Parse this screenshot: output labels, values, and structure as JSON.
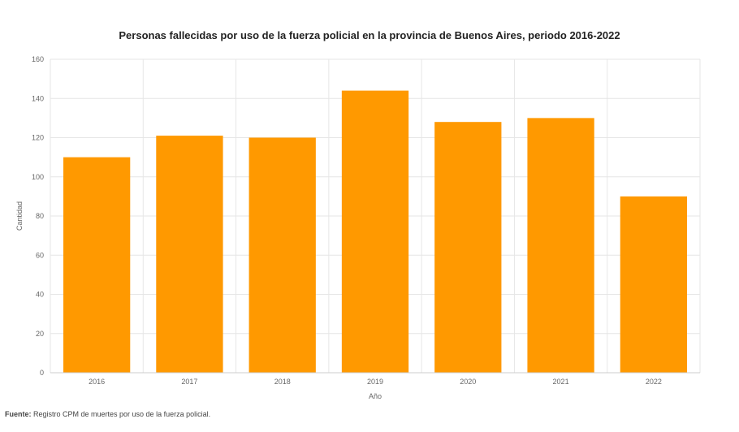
{
  "chart_data": {
    "type": "bar",
    "title": "Personas fallecidas por uso de la fuerza policial en la provincia de Buenos Aires, periodo 2016-2022",
    "xlabel": "Año",
    "ylabel": "Cantidad",
    "categories": [
      "2016",
      "2017",
      "2018",
      "2019",
      "2020",
      "2021",
      "2022"
    ],
    "values": [
      110,
      121,
      120,
      144,
      128,
      130,
      90
    ],
    "ylim": [
      0,
      160
    ],
    "yticks": [
      0,
      20,
      40,
      60,
      80,
      100,
      120,
      140,
      160
    ],
    "grid": true,
    "legend": "none",
    "bar_color": "#ff9900",
    "grid_color": "#e6e6e6",
    "axis_color": "#cccccc"
  },
  "source": {
    "label": "Fuente:",
    "text": " Registro CPM de muertes por uso de la fuerza policial."
  }
}
